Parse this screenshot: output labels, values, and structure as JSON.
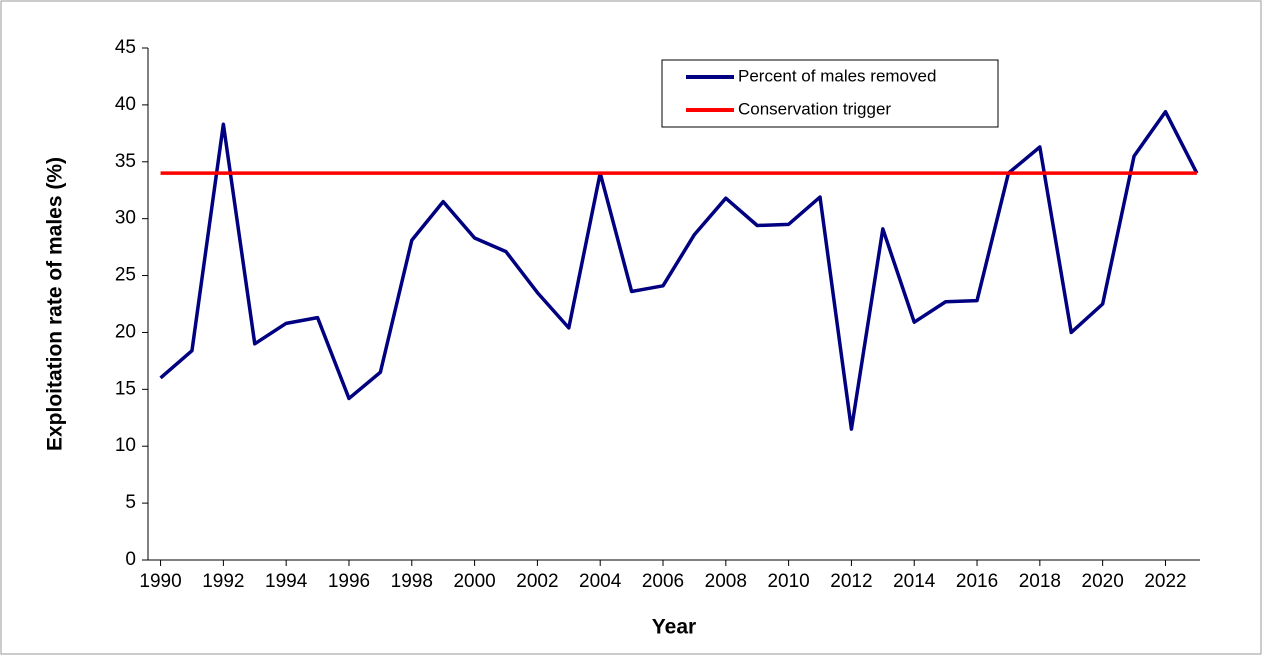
{
  "chart_data": {
    "type": "line",
    "x_label": "Year",
    "y_label": "Exploitation  rate of males (%)",
    "x": [
      1990,
      1991,
      1992,
      1993,
      1994,
      1995,
      1996,
      1997,
      1998,
      1999,
      2000,
      2001,
      2002,
      2003,
      2004,
      2005,
      2006,
      2007,
      2008,
      2009,
      2010,
      2011,
      2012,
      2013,
      2014,
      2015,
      2016,
      2017,
      2018,
      2019,
      2020,
      2021,
      2022,
      2023
    ],
    "series": [
      {
        "name": "Percent of males removed",
        "color": "#000080",
        "values": [
          16.0,
          18.4,
          38.3,
          19.0,
          20.8,
          21.3,
          14.2,
          16.5,
          28.1,
          31.5,
          28.3,
          27.1,
          23.5,
          20.4,
          34.0,
          23.6,
          24.1,
          28.6,
          31.8,
          29.4,
          29.5,
          31.9,
          11.5,
          29.1,
          20.9,
          22.7,
          22.8,
          34.0,
          36.3,
          20.0,
          22.5,
          35.5,
          39.4,
          34.0
        ]
      },
      {
        "name": "Conservation trigger",
        "color": "#ff0000",
        "values": [
          34,
          34,
          34,
          34,
          34,
          34,
          34,
          34,
          34,
          34,
          34,
          34,
          34,
          34,
          34,
          34,
          34,
          34,
          34,
          34,
          34,
          34,
          34,
          34,
          34,
          34,
          34,
          34,
          34,
          34,
          34,
          34,
          34,
          34
        ]
      }
    ],
    "xlim": [
      1989.6,
      2023.1
    ],
    "xticks": [
      1990,
      1992,
      1994,
      1996,
      1998,
      2000,
      2002,
      2004,
      2006,
      2008,
      2010,
      2012,
      2014,
      2016,
      2018,
      2020,
      2022
    ],
    "ylim": [
      0,
      45
    ],
    "yticks": [
      0,
      5,
      10,
      15,
      20,
      25,
      30,
      35,
      40,
      45
    ],
    "legend": "top-right"
  }
}
